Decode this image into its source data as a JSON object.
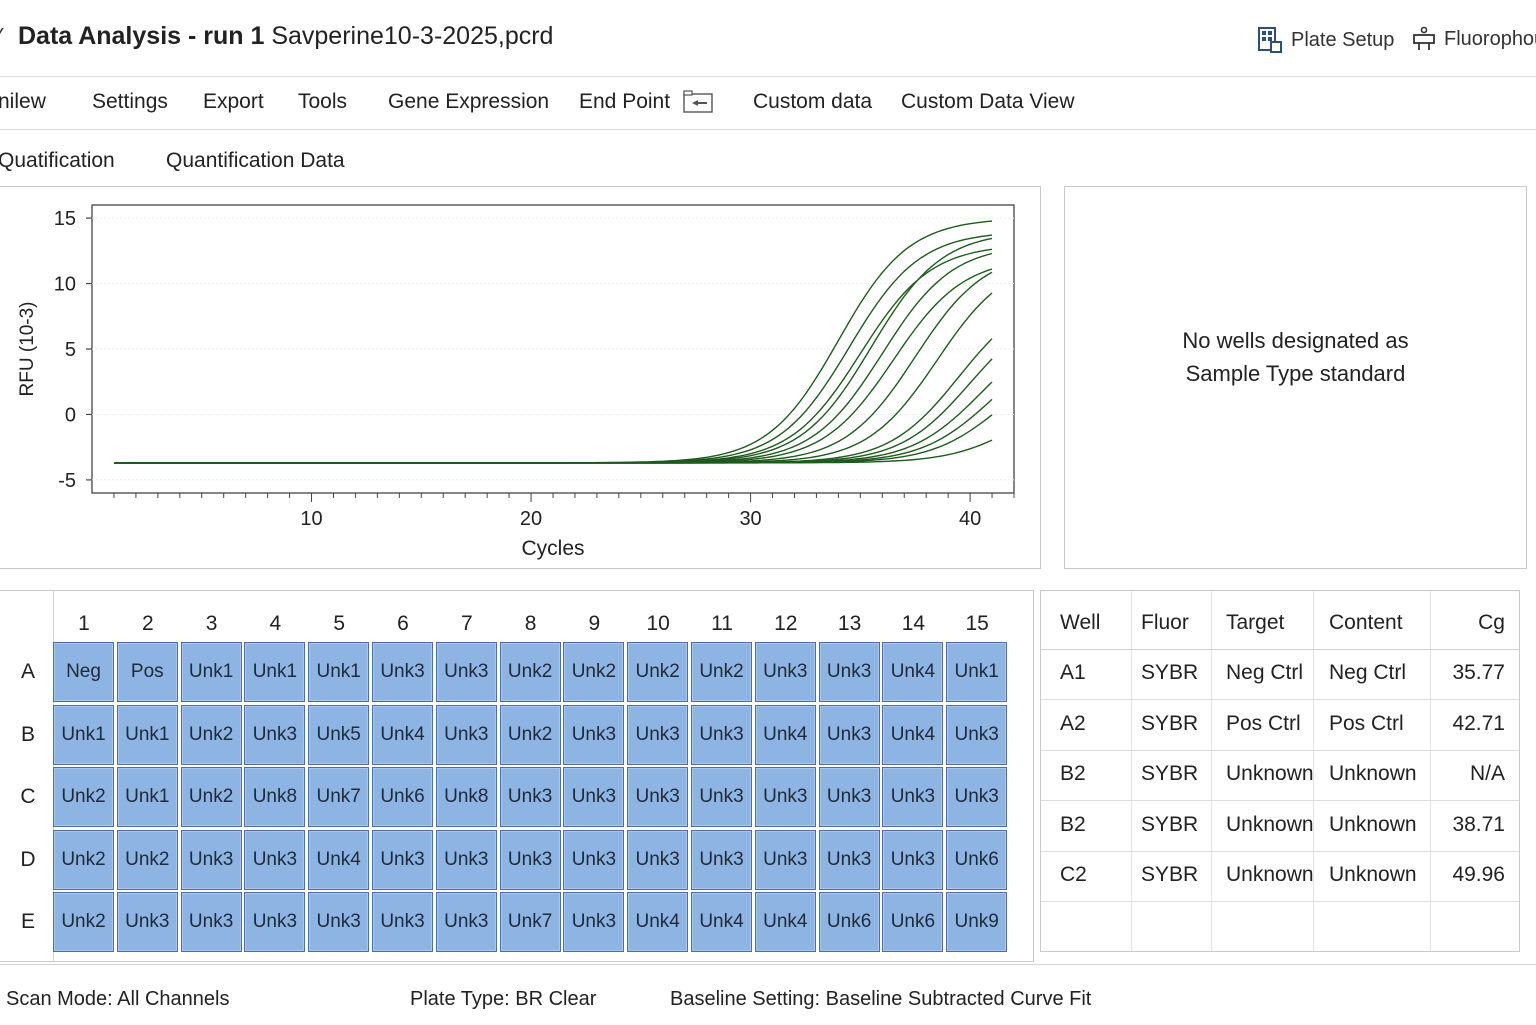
{
  "window": {
    "title_bold": "Data Analysis - run 1",
    "title_file": "Savperine10-3-2025,pcrd",
    "plate_setup_label": "Plate Setup",
    "fluorophore_label": "Fluorophou"
  },
  "menu": [
    "nilew",
    "Settings",
    "Export",
    "Tools",
    "Gene Expression",
    "End Point",
    "Custom data",
    "Custom Data View"
  ],
  "tabs": [
    "Quatification",
    "Quantification Data"
  ],
  "chart_data": {
    "type": "line",
    "title": "",
    "xlabel": "Cycles",
    "ylabel": "RFU (10-3)",
    "xlim": [
      0,
      42
    ],
    "ylim": [
      -6,
      16
    ],
    "x_ticks": [
      10,
      20,
      30,
      40
    ],
    "y_ticks": [
      15,
      10,
      5,
      0,
      -5
    ],
    "color": "#1f5a1f",
    "baseline": -3.7,
    "x_start": 1,
    "x_end": 41,
    "curves": [
      {
        "midpoint": 34.0,
        "plateau": 15.0
      },
      {
        "midpoint": 34.5,
        "plateau": 14.0
      },
      {
        "midpoint": 35.0,
        "plateau": 13.0
      },
      {
        "midpoint": 35.5,
        "plateau": 14.0
      },
      {
        "midpoint": 36.0,
        "plateau": 13.0
      },
      {
        "midpoint": 36.5,
        "plateau": 12.0
      },
      {
        "midpoint": 37.5,
        "plateau": 12.5
      },
      {
        "midpoint": 38.5,
        "plateau": 12.0
      },
      {
        "midpoint": 39.5,
        "plateau": 9.5
      },
      {
        "midpoint": 40.0,
        "plateau": 8.5
      },
      {
        "midpoint": 40.5,
        "plateau": 7.0
      },
      {
        "midpoint": 41.0,
        "plateau": 6.0
      },
      {
        "midpoint": 41.5,
        "plateau": 5.0
      },
      {
        "midpoint": 42.5,
        "plateau": 2.5
      }
    ]
  },
  "standard_curve": {
    "message_line1": "No wells designated as",
    "message_line2": "Sample Type standard"
  },
  "plate": {
    "columns": [
      "1",
      "2",
      "3",
      "4",
      "5",
      "6",
      "7",
      "8",
      "9",
      "10",
      "11",
      "12",
      "13",
      "14",
      "15"
    ],
    "rows": [
      {
        "label": "A",
        "wells": [
          "Neg",
          "Pos",
          "Unk1",
          "Unk1",
          "Unk1",
          "Unk3",
          "Unk3",
          "Unk2",
          "Unk2",
          "Unk2",
          "Unk2",
          "Unk3",
          "Unk3",
          "Unk4",
          "Unk1"
        ]
      },
      {
        "label": "B",
        "wells": [
          "Unk1",
          "Unk1",
          "Unk2",
          "Unk3",
          "Unk5",
          "Unk4",
          "Unk3",
          "Unk2",
          "Unk3",
          "Unk3",
          "Unk3",
          "Unk4",
          "Unk3",
          "Unk4",
          "Unk3"
        ]
      },
      {
        "label": "C",
        "wells": [
          "Unk2",
          "Unk1",
          "Unk2",
          "Unk8",
          "Unk7",
          "Unk6",
          "Unk8",
          "Unk3",
          "Unk3",
          "Unk3",
          "Unk3",
          "Unk3",
          "Unk3",
          "Unk3",
          "Unk3"
        ]
      },
      {
        "label": "D",
        "wells": [
          "Unk2",
          "Unk2",
          "Unk3",
          "Unk3",
          "Unk4",
          "Unk3",
          "Unk3",
          "Unk3",
          "Unk3",
          "Unk3",
          "Unk3",
          "Unk3",
          "Unk3",
          "Unk3",
          "Unk6"
        ]
      },
      {
        "label": "E",
        "wells": [
          "Unk2",
          "Unk3",
          "Unk3",
          "Unk3",
          "Unk3",
          "Unk3",
          "Unk3",
          "Unk7",
          "Unk3",
          "Unk4",
          "Unk4",
          "Unk4",
          "Unk6",
          "Unk6",
          "Unk9"
        ]
      }
    ]
  },
  "results_table": {
    "headers": [
      "Well",
      "Fluor",
      "Target",
      "Content",
      "Cg"
    ],
    "rows": [
      [
        "A1",
        "SYBR",
        "Neg Ctrl",
        "Neg Ctrl",
        "35.77"
      ],
      [
        "A2",
        "SYBR",
        "Pos Ctrl",
        "Pos Ctrl",
        "42.71"
      ],
      [
        "B2",
        "SYBR",
        "Unknown",
        "Unknown",
        "N/A"
      ],
      [
        "B2",
        "SYBR",
        "Unknown",
        "Unknown",
        "38.71"
      ],
      [
        "C2",
        "SYBR",
        "Unknown",
        "Unknown",
        "49.96"
      ]
    ]
  },
  "status": {
    "scan_mode": "Scan Mode: All Channels",
    "plate_type": "Plate Type: BR Clear",
    "baseline": "Baseline Setting: Baseline Subtracted Curve Fit"
  }
}
